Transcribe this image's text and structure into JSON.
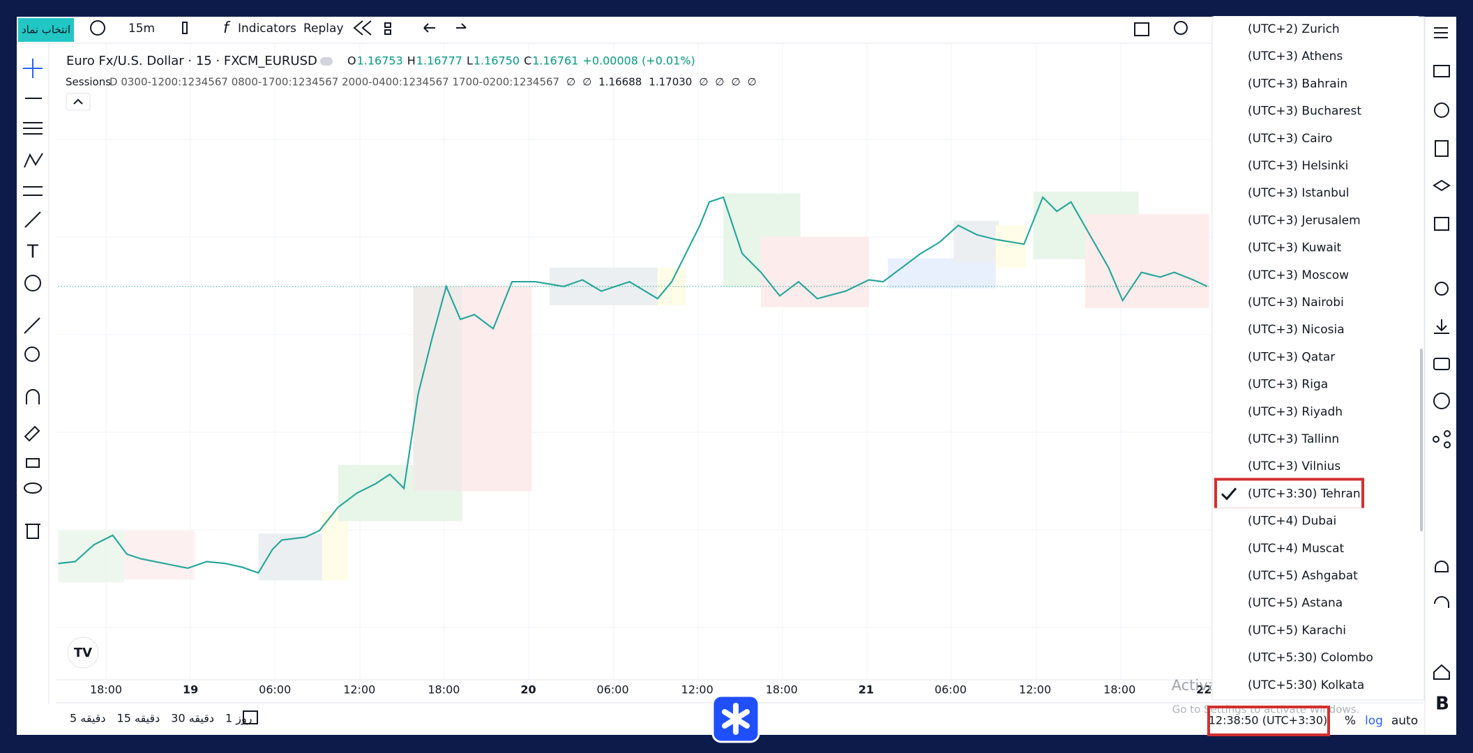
{
  "toolbar": {
    "symbol_button": "انتخاب نماد",
    "interval": "15m",
    "indicators": "Indicators",
    "replay": "Replay"
  },
  "legend": {
    "title": "Euro Fx/U.S. Dollar · 15 · FXCM_EURUSD",
    "ohlc": [
      {
        "label": "O",
        "value": "1.16753"
      },
      {
        "label": "H",
        "value": "1.16777"
      },
      {
        "label": "L",
        "value": "1.16750"
      },
      {
        "label": "C",
        "value": "1.16761"
      }
    ],
    "change": "+0.00008 (+0.01%)"
  },
  "sessions": {
    "name": "Sessions",
    "params": "D 0300-1200:1234567 0800-1700:1234567 2000-0400:1234567 1700-0200:1234567",
    "values": [
      "∅",
      "∅",
      "1.16688",
      "1.17030",
      "∅",
      "∅",
      "∅",
      "∅"
    ]
  },
  "x_axis": [
    "18:00",
    "19",
    "06:00",
    "12:00",
    "18:00",
    "20",
    "06:00",
    "12:00",
    "18:00",
    "21",
    "06:00",
    "12:00",
    "18:00",
    "22"
  ],
  "timezones": {
    "items": [
      "(UTC+2) Zurich",
      "(UTC+3) Athens",
      "(UTC+3) Bahrain",
      "(UTC+3) Bucharest",
      "(UTC+3) Cairo",
      "(UTC+3) Helsinki",
      "(UTC+3) Istanbul",
      "(UTC+3) Jerusalem",
      "(UTC+3) Kuwait",
      "(UTC+3) Moscow",
      "(UTC+3) Nairobi",
      "(UTC+3) Nicosia",
      "(UTC+3) Qatar",
      "(UTC+3) Riga",
      "(UTC+3) Riyadh",
      "(UTC+3) Tallinn",
      "(UTC+3) Vilnius",
      "(UTC+3:30) Tehran",
      "(UTC+4) Dubai",
      "(UTC+4) Muscat",
      "(UTC+5) Ashgabat",
      "(UTC+5) Astana",
      "(UTC+5) Karachi",
      "(UTC+5:30) Colombo",
      "(UTC+5:30) Kolkata"
    ],
    "selected_index": 17
  },
  "bottom_bar": {
    "ranges": [
      "5 دقیقه",
      "15 دقیقه",
      "30 دقیقه",
      "1 روز"
    ],
    "clock": "12:38:50 (UTC+3:30)",
    "percent": "%",
    "log": "log",
    "auto": "auto"
  },
  "watermark": [
    "Activate Windows",
    "Go to Settings to activate Windows."
  ]
}
